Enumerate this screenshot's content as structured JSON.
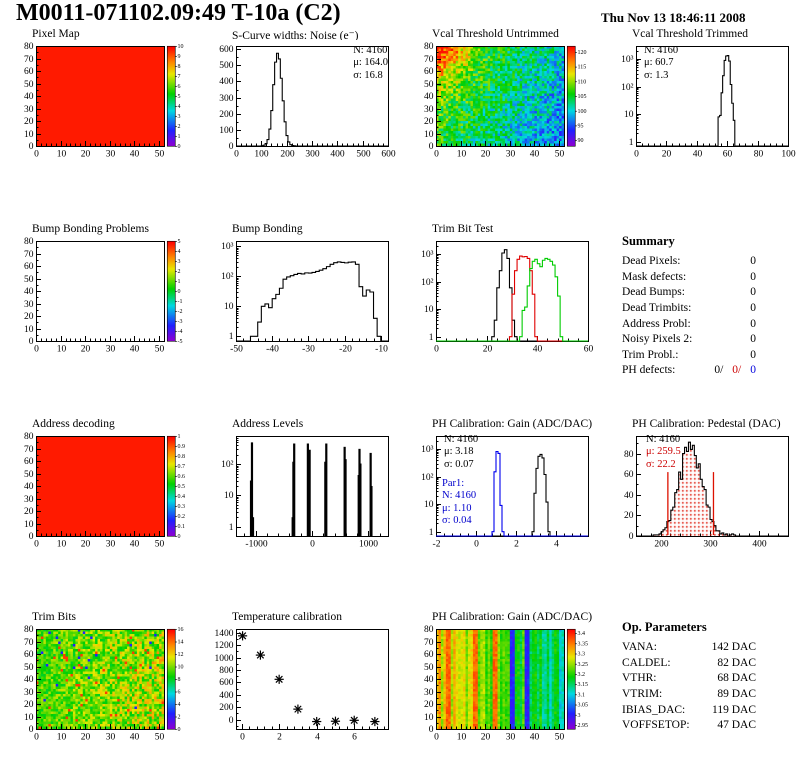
{
  "header": {
    "title": "M0011-071102.09:49 T-10a (C2)",
    "timestamp": "Thu Nov 13 18:46:11 2008"
  },
  "chart_data": [
    {
      "type": "heatmap",
      "title": "Pixel Map",
      "fill": "solid",
      "seed": 3,
      "x": {
        "min": 0,
        "max": 52,
        "ticks": [
          0,
          10,
          20,
          30,
          40,
          50
        ],
        "label": ""
      },
      "y": {
        "min": 0,
        "max": 80,
        "ticks": [
          0,
          10,
          20,
          30,
          40,
          50,
          60,
          70,
          80
        ]
      },
      "z": {
        "min": 0,
        "max": 10,
        "ticks": [
          0,
          1,
          2,
          3,
          4,
          5,
          6,
          7,
          8,
          9,
          10
        ]
      }
    },
    {
      "type": "hist",
      "title": "S-Curve widths: Noise (e⁻)",
      "logy": false,
      "x": {
        "min": 0,
        "max": 600,
        "ticks": [
          0,
          100,
          200,
          300,
          400,
          500,
          600
        ]
      },
      "y": {
        "min": 0,
        "max": 620,
        "ticks": [
          0,
          100,
          200,
          300,
          400,
          500,
          600
        ]
      },
      "series": [
        {
          "color": "#000000",
          "start": 100,
          "width": 7.5,
          "counts": [
            2,
            5,
            15,
            40,
            105,
            220,
            380,
            520,
            575,
            540,
            420,
            280,
            150,
            65,
            25,
            8,
            3,
            1
          ]
        }
      ],
      "stats": [
        "N: 4160",
        "μ: 164.0",
        "σ: 16.8"
      ]
    },
    {
      "type": "heatmap",
      "title": "Vcal Threshold Untrimmed",
      "fill": "noise",
      "seed": 11,
      "gen": {
        "base": 106,
        "xs": -10,
        "ys": 4,
        "amp": 5,
        "hot": 11
      },
      "x": {
        "min": 0,
        "max": 52,
        "ticks": [
          0,
          10,
          20,
          30,
          40,
          50
        ]
      },
      "y": {
        "min": 0,
        "max": 80,
        "ticks": [
          0,
          10,
          20,
          30,
          40,
          50,
          60,
          70,
          80
        ]
      },
      "z": {
        "min": 88,
        "max": 122,
        "ticks": [
          90,
          95,
          100,
          105,
          110,
          115,
          120
        ]
      }
    },
    {
      "type": "hist",
      "title": "Vcal Threshold Trimmed",
      "logy": true,
      "x": {
        "min": 0,
        "max": 100,
        "ticks": [
          0,
          20,
          40,
          60,
          80,
          100
        ]
      },
      "y": {
        "min": 0.7,
        "max": 3000
      },
      "series": [
        {
          "color": "#000000",
          "start": 54,
          "width": 1,
          "counts": [
            8,
            9,
            60,
            250,
            900,
            1300,
            1350,
            850,
            120,
            25,
            6
          ]
        }
      ],
      "stats": [
        "N: 4160",
        "μ: 60.7",
        "σ:  1.3"
      ]
    },
    {
      "type": "heatmap",
      "title": "Bump Bonding Problems",
      "fill": "none",
      "seed": 5,
      "x": {
        "min": 0,
        "max": 52,
        "ticks": [
          0,
          10,
          20,
          30,
          40,
          50
        ]
      },
      "y": {
        "min": 0,
        "max": 80,
        "ticks": [
          0,
          10,
          20,
          30,
          40,
          50,
          60,
          70,
          80
        ]
      },
      "z": {
        "min": -5,
        "max": 5,
        "ticks": [
          -5,
          -4,
          -3,
          -2,
          -1,
          0,
          1,
          2,
          3,
          4,
          5
        ]
      }
    },
    {
      "type": "hist",
      "title": "Bump Bonding",
      "logy": true,
      "x": {
        "min": -50,
        "max": -8,
        "ticks": [
          -50,
          -40,
          -30,
          -20,
          -10
        ]
      },
      "y": {
        "min": 0.7,
        "max": 1500
      },
      "series": [
        {
          "color": "#000000",
          "start": -46,
          "width": 1,
          "counts": [
            1,
            1,
            3,
            10,
            12,
            9,
            18,
            25,
            40,
            80,
            95,
            105,
            115,
            125,
            120,
            130,
            128,
            135,
            145,
            160,
            180,
            210,
            250,
            285,
            300,
            290,
            280,
            295,
            300,
            250,
            45,
            22,
            35,
            30,
            4,
            1
          ]
        }
      ]
    },
    {
      "type": "hist",
      "title": "Trim Bit Test",
      "logy": true,
      "x": {
        "min": 0,
        "max": 60,
        "ticks": [
          0,
          20,
          40,
          60
        ]
      },
      "y": {
        "min": 0.7,
        "max": 3000
      },
      "series": [
        {
          "color": "#000000",
          "start": 22,
          "width": 1,
          "counts": [
            1,
            4,
            60,
            250,
            1100,
            1450,
            700,
            60,
            4,
            1
          ]
        },
        {
          "color": "#e00000",
          "start": 29,
          "width": 1,
          "counts": [
            1,
            35,
            250,
            650,
            850,
            800,
            820,
            700,
            250,
            35,
            1
          ]
        },
        {
          "color": "#00cc00",
          "start": 33,
          "width": 1,
          "counts": [
            1,
            9,
            12,
            70,
            300,
            550,
            650,
            450,
            350,
            600,
            700,
            650,
            550,
            400,
            150,
            30,
            1
          ]
        }
      ]
    },
    {
      "type": "table",
      "title": "Summary",
      "rows": [
        {
          "label": "Dead Pixels:",
          "value": "0"
        },
        {
          "label": "Mask defects:",
          "value": "0"
        },
        {
          "label": "Dead Bumps:",
          "value": "0"
        },
        {
          "label": "Dead Trimbits:",
          "value": "0"
        },
        {
          "label": "Address Probl:",
          "value": "0"
        },
        {
          "label": "Noisy Pixels 2:",
          "value": "0"
        },
        {
          "label": "Trim Probl.:",
          "value": "0"
        }
      ],
      "ph_defects": {
        "label": "PH defects:",
        "values": [
          "0/",
          "0/",
          "0"
        ]
      }
    },
    {
      "type": "heatmap",
      "title": "Address decoding",
      "fill": "solid",
      "seed": 7,
      "x": {
        "min": 0,
        "max": 52,
        "ticks": [
          0,
          10,
          20,
          30,
          40,
          50
        ]
      },
      "y": {
        "min": 0,
        "max": 80,
        "ticks": [
          0,
          10,
          20,
          30,
          40,
          50,
          60,
          70,
          80
        ]
      },
      "z": {
        "min": 0,
        "max": 1,
        "ticks": [
          0,
          0.1,
          0.2,
          0.3,
          0.4,
          0.5,
          0.6,
          0.7,
          0.8,
          0.9,
          1
        ]
      }
    },
    {
      "type": "spikes",
      "title": "Address Levels",
      "logy": true,
      "x": {
        "min": -1350,
        "max": 1350,
        "ticks": [
          -1000,
          0,
          1000
        ]
      },
      "y": {
        "min": 0.5,
        "max": 800
      },
      "spikes": [
        [
          -1085,
          30
        ],
        [
          -1068,
          500
        ],
        [
          -1050,
          2
        ],
        [
          -345,
          2
        ],
        [
          -332,
          120
        ],
        [
          -318,
          460
        ],
        [
          -75,
          460
        ],
        [
          -58,
          11
        ],
        [
          -44,
          290
        ],
        [
          235,
          120
        ],
        [
          252,
          460
        ],
        [
          578,
          360
        ],
        [
          594,
          145
        ],
        [
          828,
          45
        ],
        [
          842,
          310
        ],
        [
          858,
          105
        ],
        [
          1040,
          230
        ],
        [
          1054,
          20
        ]
      ]
    },
    {
      "type": "hist",
      "title": "PH Calibration: Gain (ADC/DAC)",
      "logy": true,
      "x": {
        "min": -2,
        "max": 5.6,
        "ticks": [
          -2,
          0,
          2,
          4
        ]
      },
      "y": {
        "min": 0.7,
        "max": 3000
      },
      "series": [
        {
          "color": "#000000",
          "start": 2.8,
          "width": 0.1,
          "counts": [
            1,
            25,
            200,
            550,
            640,
            480,
            120,
            12,
            1
          ]
        },
        {
          "color": "#0000ee",
          "start": 0.8,
          "width": 0.1,
          "counts": [
            1,
            150,
            820,
            700,
            9,
            1
          ]
        }
      ],
      "stats": [
        "N: 4160",
        "μ: 3.18",
        "σ: 0.07"
      ],
      "stats2": [
        "Par1:",
        "N: 4160",
        "μ: 1.10",
        "σ: 0.04"
      ]
    },
    {
      "type": "hist",
      "title": "PH Calibration: Pedestal (DAC)",
      "logy": false,
      "x": {
        "min": 150,
        "max": 460,
        "ticks": [
          200,
          300,
          400
        ]
      },
      "y": {
        "min": 0,
        "max": 97,
        "ticks": [
          0,
          20,
          40,
          60,
          80
        ]
      },
      "series": [
        {
          "color": "#000000",
          "fill": "red-dots",
          "start": 185,
          "width": 4,
          "counts": [
            1,
            1,
            1,
            2,
            4,
            6,
            8,
            14,
            15,
            25,
            28,
            42,
            45,
            62,
            55,
            80,
            86,
            82,
            91,
            84,
            88,
            78,
            66,
            70,
            55,
            48,
            45,
            30,
            28,
            16,
            14,
            10,
            5,
            5,
            2,
            3,
            1,
            2,
            0,
            1,
            2,
            1
          ]
        }
      ],
      "redLines": [
        215,
        308
      ],
      "stats": [
        "N: 4160",
        "μ: 259.5",
        "σ: 22.2"
      ]
    },
    {
      "type": "heatmap",
      "title": "Trim Bits",
      "fill": "noise",
      "seed": 23,
      "gen": {
        "base": 9.2,
        "xs": 1.6,
        "ys": 0,
        "amp": 1.5,
        "ampXs": 1.3,
        "speckHi": 0.02,
        "speckLo": 0.012
      },
      "x": {
        "min": 0,
        "max": 52,
        "ticks": [
          0,
          10,
          20,
          30,
          40,
          50
        ]
      },
      "y": {
        "min": 0,
        "max": 80,
        "ticks": [
          0,
          10,
          20,
          30,
          40,
          50,
          60,
          70,
          80
        ]
      },
      "z": {
        "min": 0,
        "max": 16,
        "ticks": [
          0,
          2,
          4,
          6,
          8,
          10,
          12,
          14,
          16
        ]
      }
    },
    {
      "type": "scatter",
      "title": "Temperature calibration",
      "marker": "asterisk",
      "points": [
        [
          0.05,
          1350
        ],
        [
          1,
          1040
        ],
        [
          2,
          650
        ],
        [
          3,
          170
        ],
        [
          4,
          -30
        ],
        [
          5,
          -25
        ],
        [
          6,
          -10
        ],
        [
          7.1,
          -30
        ]
      ],
      "x": {
        "min": -0.3,
        "max": 7.8,
        "ticks": [
          0,
          2,
          4,
          6
        ]
      },
      "y": {
        "min": -150,
        "max": 1460,
        "ticks": [
          0,
          200,
          400,
          600,
          800,
          1000,
          1200,
          1400
        ]
      }
    },
    {
      "type": "heatmap",
      "title": "PH Calibration: Gain (ADC/DAC)",
      "fill": "stripes",
      "seed": 37,
      "gen": {
        "base": 3.3,
        "xs": -0.17,
        "colAmp": 0.045,
        "cellAmp": 0.022,
        "cold": [
          30,
          31,
          36,
          37
        ],
        "coldVal": 3.0,
        "hot": [
          4,
          5,
          15,
          16,
          23,
          24
        ],
        "hotVal": 3.36
      },
      "x": {
        "min": 0,
        "max": 52,
        "ticks": [
          0,
          10,
          20,
          30,
          40,
          50
        ]
      },
      "y": {
        "min": 0,
        "max": 80,
        "ticks": [
          0,
          10,
          20,
          30,
          40,
          50,
          60,
          70,
          80
        ]
      },
      "z": {
        "min": 2.93,
        "max": 3.42,
        "ticks": [
          2.95,
          3,
          3.05,
          3.1,
          3.15,
          3.2,
          3.25,
          3.3,
          3.35,
          3.4
        ]
      }
    },
    {
      "type": "table",
      "title": "Op. Parameters",
      "rows": [
        {
          "label": "VANA:",
          "value": "142 DAC"
        },
        {
          "label": "CALDEL:",
          "value": "82 DAC"
        },
        {
          "label": "VTHR:",
          "value": "68 DAC"
        },
        {
          "label": "VTRIM:",
          "value": "89 DAC"
        },
        {
          "label": "IBIAS_DAC:",
          "value": "119 DAC"
        },
        {
          "label": "VOFFSETOP:",
          "value": "47 DAC"
        }
      ]
    }
  ]
}
